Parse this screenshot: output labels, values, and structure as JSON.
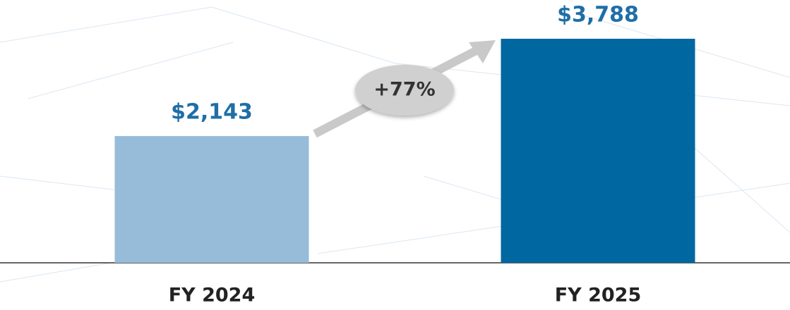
{
  "chart_data": {
    "type": "bar",
    "categories": [
      "FY 2024",
      "FY 2025"
    ],
    "values": [
      2143,
      3788
    ],
    "value_labels": [
      "$2,143",
      "$3,788"
    ],
    "colors": [
      "#97bcd9",
      "#0067a0"
    ],
    "annotation": "+77%"
  }
}
